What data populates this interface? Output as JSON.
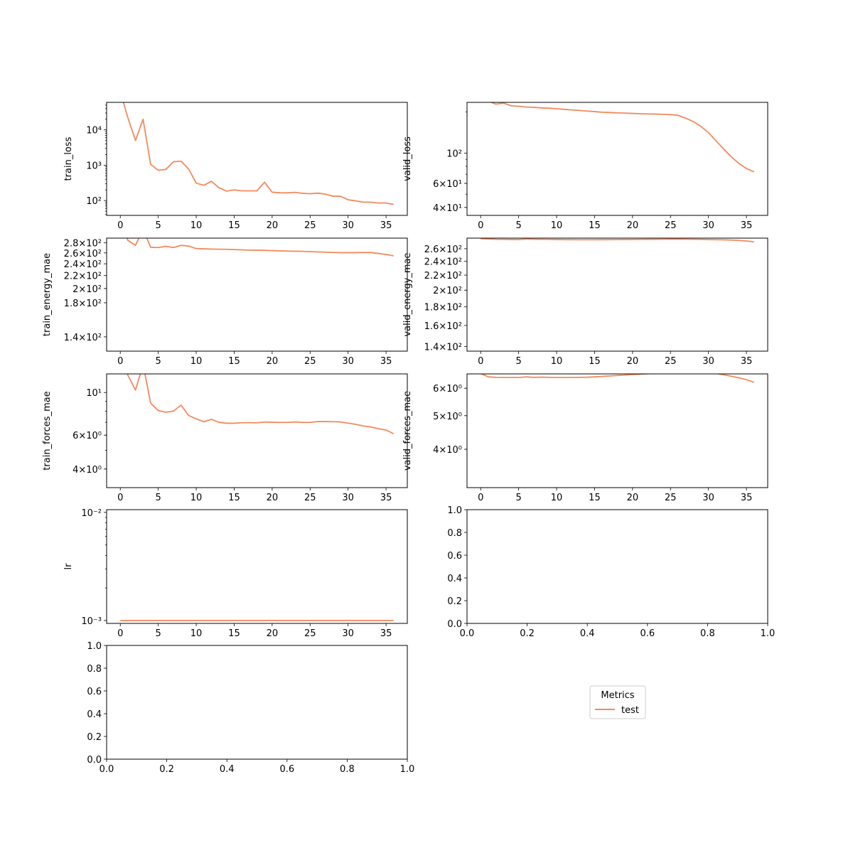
{
  "series_color": "#f4895c",
  "legend": {
    "title": "Metrics",
    "entries": [
      "test"
    ]
  },
  "chart_data": [
    {
      "type": "line",
      "ylabel": "train_loss",
      "yscale": "log",
      "xlim": [
        -1.8,
        37.8
      ],
      "ylim": [
        38,
        60000
      ],
      "xticks": [
        "0",
        "5",
        "10",
        "15",
        "20",
        "25",
        "30",
        "35"
      ],
      "yticks": [
        {
          "v": 100,
          "label": "10²"
        },
        {
          "v": 1000,
          "label": "10³"
        },
        {
          "v": 10000,
          "label": "10⁴"
        }
      ],
      "series": [
        {
          "name": "test",
          "x": [
            0,
            1,
            2,
            3,
            4,
            5,
            6,
            7,
            8,
            9,
            10,
            11,
            12,
            13,
            14,
            15,
            16,
            17,
            18,
            19,
            20,
            21,
            22,
            23,
            24,
            25,
            26,
            27,
            28,
            29,
            30,
            31,
            32,
            33,
            34,
            35,
            36
          ],
          "y": [
            120000,
            22000,
            5000,
            20000,
            1050,
            720,
            760,
            1250,
            1300,
            780,
            310,
            270,
            350,
            230,
            185,
            200,
            188,
            188,
            188,
            330,
            172,
            166,
            165,
            170,
            160,
            156,
            162,
            152,
            133,
            132,
            105,
            98,
            90,
            90,
            85,
            85,
            78
          ]
        }
      ]
    },
    {
      "type": "line",
      "ylabel": "valid_loss",
      "yscale": "log",
      "xlim": [
        -1.8,
        37.8
      ],
      "ylim": [
        35,
        235
      ],
      "xticks": [
        "0",
        "5",
        "10",
        "15",
        "20",
        "25",
        "30",
        "35"
      ],
      "yticks": [
        {
          "v": 40,
          "label": "4×10¹"
        },
        {
          "v": 60,
          "label": "6×10¹"
        },
        {
          "v": 100,
          "label": "10²"
        }
      ],
      "series": [
        {
          "name": "test",
          "x": [
            0,
            1,
            2,
            3,
            4,
            5,
            6,
            7,
            8,
            9,
            10,
            11,
            12,
            13,
            14,
            15,
            16,
            17,
            18,
            19,
            20,
            21,
            22,
            23,
            24,
            25,
            26,
            27,
            28,
            29,
            30,
            31,
            32,
            33,
            34,
            35,
            36
          ],
          "y": [
            250,
            240,
            228,
            232,
            222,
            220,
            217,
            216,
            214,
            213,
            211,
            209,
            207,
            205,
            203,
            201,
            199,
            198,
            197,
            196,
            195,
            194,
            193.5,
            193,
            192,
            191,
            189,
            180,
            170,
            157,
            141,
            123,
            107,
            94,
            84,
            77,
            73
          ]
        }
      ]
    },
    {
      "type": "line",
      "ylabel": "train_energy_mae",
      "yscale": "log",
      "xlim": [
        -1.8,
        37.8
      ],
      "ylim": [
        126,
        290
      ],
      "xticks": [
        "0",
        "5",
        "10",
        "15",
        "20",
        "25",
        "30",
        "35"
      ],
      "yticks": [
        {
          "v": 140,
          "label": "1.4×10²"
        },
        {
          "v": 180,
          "label": "1.8×10²"
        },
        {
          "v": 200,
          "label": "2×10²"
        },
        {
          "v": 220,
          "label": "2.2×10²"
        },
        {
          "v": 240,
          "label": "2.4×10²"
        },
        {
          "v": 260,
          "label": "2.6×10²"
        },
        {
          "v": 280,
          "label": "2.8×10²"
        }
      ],
      "series": [
        {
          "name": "test",
          "x": [
            0,
            1,
            2,
            3,
            4,
            5,
            6,
            7,
            8,
            9,
            10,
            11,
            12,
            13,
            14,
            15,
            16,
            17,
            18,
            19,
            20,
            21,
            22,
            23,
            24,
            25,
            26,
            27,
            28,
            29,
            30,
            31,
            32,
            33,
            34,
            35,
            36
          ],
          "y": [
            340,
            285,
            275,
            310,
            271,
            270.5,
            273,
            270.5,
            275,
            273.5,
            268.5,
            268,
            267.5,
            267.2,
            267,
            266.5,
            266,
            265.5,
            265.2,
            265,
            264.5,
            264,
            263.5,
            263.3,
            263,
            262.5,
            262,
            261.5,
            261,
            260.5,
            260.5,
            260.5,
            261,
            260.7,
            259,
            257,
            254.5
          ]
        }
      ]
    },
    {
      "type": "line",
      "ylabel": "valid_energy_mae",
      "yscale": "log",
      "xlim": [
        -1.8,
        37.8
      ],
      "ylim": [
        136,
        278
      ],
      "xticks": [
        "0",
        "5",
        "10",
        "15",
        "20",
        "25",
        "30",
        "35"
      ],
      "yticks": [
        {
          "v": 140,
          "label": "1.4×10²"
        },
        {
          "v": 160,
          "label": "1.6×10²"
        },
        {
          "v": 180,
          "label": "1.8×10²"
        },
        {
          "v": 200,
          "label": "2×10²"
        },
        {
          "v": 220,
          "label": "2.2×10²"
        },
        {
          "v": 240,
          "label": "2.4×10²"
        },
        {
          "v": 260,
          "label": "2.6×10²"
        }
      ],
      "series": [
        {
          "name": "test",
          "x": [
            0,
            1,
            2,
            3,
            4,
            5,
            6,
            7,
            8,
            9,
            10,
            11,
            12,
            13,
            14,
            15,
            16,
            17,
            18,
            19,
            20,
            21,
            22,
            23,
            24,
            25,
            26,
            27,
            28,
            29,
            30,
            31,
            32,
            33,
            34,
            35,
            36
          ],
          "y": [
            277,
            276.5,
            276,
            275.8,
            275.6,
            275.5,
            276.5,
            276,
            276,
            275.8,
            275.6,
            275.4,
            275.3,
            275.2,
            275.2,
            275.2,
            275.3,
            275.4,
            275.5,
            275.6,
            275.7,
            275.8,
            275.9,
            276,
            276.1,
            276.2,
            276.2,
            276.1,
            276,
            275.8,
            275.5,
            275.2,
            275,
            274.6,
            274,
            273,
            271.5
          ]
        }
      ]
    },
    {
      "type": "line",
      "ylabel": "train_forces_mae",
      "yscale": "log",
      "xlim": [
        -1.8,
        37.8
      ],
      "ylim": [
        3.2,
        12.5
      ],
      "xticks": [
        "0",
        "5",
        "10",
        "15",
        "20",
        "25",
        "30",
        "35"
      ],
      "yticks": [
        {
          "v": 4,
          "label": "4×10⁰"
        },
        {
          "v": 6,
          "label": "6×10⁰"
        },
        {
          "v": 10,
          "label": "10¹"
        }
      ],
      "series": [
        {
          "name": "test",
          "x": [
            0,
            1,
            2,
            3,
            4,
            5,
            6,
            7,
            8,
            9,
            10,
            11,
            12,
            13,
            14,
            15,
            16,
            17,
            18,
            19,
            20,
            21,
            22,
            23,
            24,
            25,
            26,
            27,
            28,
            29,
            30,
            31,
            32,
            33,
            34,
            35,
            36
          ],
          "y": [
            15,
            12.3,
            10.3,
            14,
            8.8,
            8.05,
            7.9,
            8.0,
            8.6,
            7.6,
            7.3,
            7.05,
            7.25,
            7.0,
            6.92,
            6.92,
            6.97,
            6.97,
            6.96,
            7.02,
            7.0,
            6.99,
            6.99,
            7.03,
            6.99,
            6.99,
            7.06,
            7.06,
            7.05,
            7.03,
            6.93,
            6.83,
            6.7,
            6.62,
            6.48,
            6.38,
            6.1
          ]
        }
      ]
    },
    {
      "type": "line",
      "ylabel": "valid_forces_mae",
      "yscale": "log",
      "xlim": [
        -1.8,
        37.8
      ],
      "ylim": [
        3.1,
        6.6
      ],
      "xticks": [
        "0",
        "5",
        "10",
        "15",
        "20",
        "25",
        "30",
        "35"
      ],
      "yticks": [
        {
          "v": 4,
          "label": "4×10⁰"
        },
        {
          "v": 5,
          "label": "5×10⁰"
        },
        {
          "v": 6,
          "label": "6×10⁰"
        }
      ],
      "series": [
        {
          "name": "test",
          "x": [
            0,
            1,
            2,
            3,
            4,
            5,
            6,
            7,
            8,
            9,
            10,
            11,
            12,
            13,
            14,
            15,
            16,
            17,
            18,
            19,
            20,
            21,
            22,
            23,
            24,
            25,
            26,
            27,
            28,
            29,
            30,
            31,
            32,
            33,
            34,
            35,
            36
          ],
          "y": [
            6.62,
            6.47,
            6.45,
            6.445,
            6.445,
            6.445,
            6.47,
            6.45,
            6.46,
            6.45,
            6.445,
            6.445,
            6.445,
            6.45,
            6.455,
            6.47,
            6.49,
            6.51,
            6.53,
            6.55,
            6.57,
            6.59,
            6.61,
            6.63,
            6.65,
            6.67,
            6.69,
            6.7,
            6.7,
            6.69,
            6.67,
            6.62,
            6.56,
            6.5,
            6.43,
            6.35,
            6.24
          ]
        }
      ]
    },
    {
      "type": "line",
      "ylabel": "lr",
      "yscale": "log",
      "xlim": [
        -1.8,
        37.8
      ],
      "ylim": [
        0.00094,
        0.0106
      ],
      "xticks": [
        "0",
        "5",
        "10",
        "15",
        "20",
        "25",
        "30",
        "35"
      ],
      "yticks": [
        {
          "v": 0.001,
          "label": "10⁻³"
        },
        {
          "v": 0.01,
          "label": "10⁻²"
        }
      ],
      "series": [
        {
          "name": "test",
          "x": [
            0,
            36
          ],
          "y": [
            0.001,
            0.001
          ]
        }
      ]
    },
    {
      "type": "line",
      "ylabel": "",
      "yscale": "linear",
      "xlim": [
        0,
        1
      ],
      "ylim": [
        0,
        1
      ],
      "xticks": [
        "0.0",
        "0.2",
        "0.4",
        "0.6",
        "0.8",
        "1.0"
      ],
      "yticks": [
        {
          "v": 0,
          "label": "0.0"
        },
        {
          "v": 0.2,
          "label": "0.2"
        },
        {
          "v": 0.4,
          "label": "0.4"
        },
        {
          "v": 0.6,
          "label": "0.6"
        },
        {
          "v": 0.8,
          "label": "0.8"
        },
        {
          "v": 1,
          "label": "1.0"
        }
      ],
      "series": []
    },
    {
      "type": "line",
      "ylabel": "",
      "yscale": "linear",
      "xlim": [
        0,
        1
      ],
      "ylim": [
        0,
        1
      ],
      "xticks": [
        "0.0",
        "0.2",
        "0.4",
        "0.6",
        "0.8",
        "1.0"
      ],
      "yticks": [
        {
          "v": 0,
          "label": "0.0"
        },
        {
          "v": 0.2,
          "label": "0.2"
        },
        {
          "v": 0.4,
          "label": "0.4"
        },
        {
          "v": 0.6,
          "label": "0.6"
        },
        {
          "v": 0.8,
          "label": "0.8"
        },
        {
          "v": 1,
          "label": "1.0"
        }
      ],
      "series": []
    }
  ]
}
